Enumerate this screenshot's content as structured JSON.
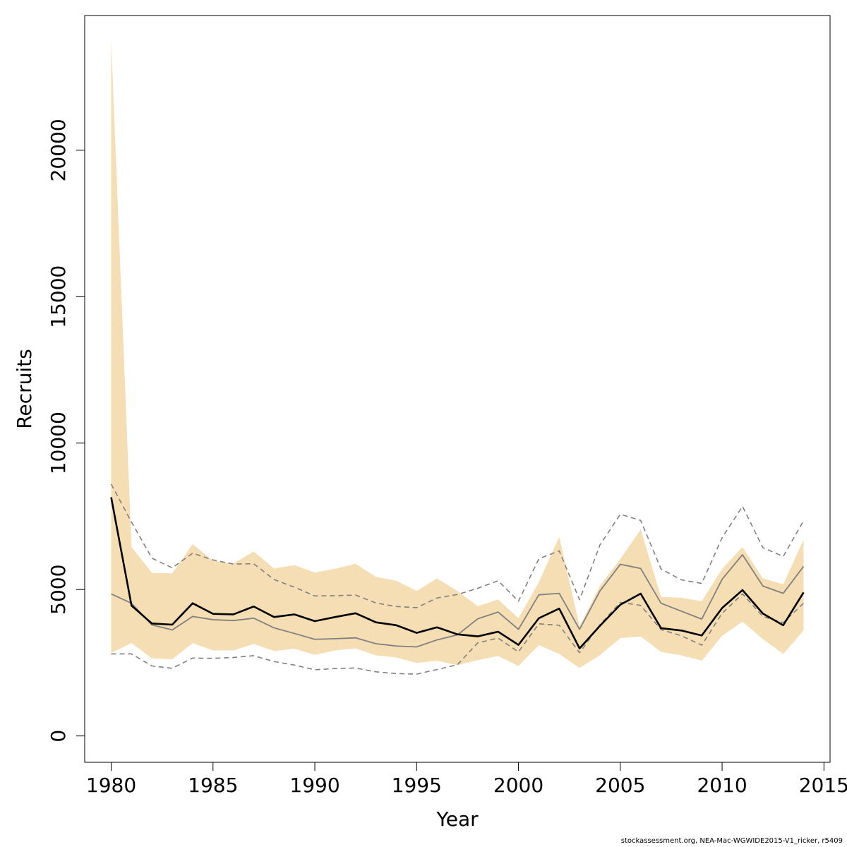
{
  "chart_data": {
    "type": "line",
    "xlabel": "Year",
    "ylabel": "Recruits",
    "xlim": [
      1978.7,
      2015.3
    ],
    "ylim": [
      -900,
      24600
    ],
    "x_ticks": [
      1980,
      1985,
      1990,
      1995,
      2000,
      2005,
      2010,
      2015
    ],
    "x_tick_labels": [
      "1980",
      "1985",
      "1990",
      "1995",
      "2000",
      "2005",
      "2010",
      "2015"
    ],
    "y_ticks": [
      0,
      5000,
      10000,
      15000,
      20000
    ],
    "y_tick_labels": [
      "0",
      "5000",
      "10000",
      "15000",
      "20000"
    ],
    "grid": false,
    "colors": {
      "band": "#f5deb3",
      "estimate": "#000000",
      "comparison": "#808080",
      "comparison_ci": "#808080",
      "axis": "#000000"
    },
    "years": [
      1980,
      1981,
      1982,
      1983,
      1984,
      1985,
      1986,
      1987,
      1988,
      1989,
      1990,
      1991,
      1992,
      1993,
      1994,
      1995,
      1996,
      1997,
      1998,
      1999,
      2000,
      2001,
      2002,
      2003,
      2004,
      2005,
      2006,
      2007,
      2008,
      2009,
      2010,
      2011,
      2012,
      2013,
      2014
    ],
    "series": [
      {
        "role": "confidence_band",
        "upper": [
          23750,
          6450,
          5570,
          5550,
          6550,
          5980,
          5890,
          6300,
          5720,
          5830,
          5580,
          5710,
          5880,
          5430,
          5300,
          4950,
          5380,
          4950,
          4430,
          4660,
          4020,
          5250,
          6800,
          3750,
          5130,
          6040,
          7050,
          4750,
          4720,
          4600,
          5700,
          6450,
          5380,
          5180,
          6700
        ],
        "lower": [
          2830,
          3170,
          2650,
          2620,
          3170,
          2920,
          2920,
          3140,
          2900,
          2980,
          2770,
          2920,
          2990,
          2750,
          2680,
          2490,
          2570,
          2420,
          2590,
          2730,
          2390,
          3100,
          2800,
          2320,
          2760,
          3340,
          3400,
          2870,
          2750,
          2570,
          3420,
          3900,
          3310,
          2800,
          3600
        ]
      },
      {
        "role": "estimate",
        "values": [
          8150,
          4450,
          3840,
          3800,
          4530,
          4170,
          4150,
          4420,
          4060,
          4150,
          3920,
          4060,
          4190,
          3880,
          3780,
          3520,
          3710,
          3470,
          3400,
          3560,
          3110,
          4020,
          4350,
          2990,
          3760,
          4480,
          4860,
          3680,
          3600,
          3430,
          4370,
          4980,
          4180,
          3780,
          4900
        ]
      },
      {
        "role": "comparison_estimate",
        "values": [
          4850,
          4530,
          3790,
          3620,
          4080,
          3970,
          3940,
          4020,
          3690,
          3500,
          3300,
          3320,
          3350,
          3150,
          3070,
          3040,
          3280,
          3450,
          4000,
          4230,
          3640,
          4820,
          4870,
          3640,
          4950,
          5860,
          5720,
          4530,
          4260,
          3990,
          5350,
          6190,
          5120,
          4870,
          5790
        ]
      },
      {
        "role": "comparison_upper",
        "values": [
          8600,
          7300,
          6070,
          5740,
          6240,
          6010,
          5870,
          5880,
          5340,
          5080,
          4780,
          4790,
          4810,
          4540,
          4420,
          4380,
          4710,
          4830,
          5040,
          5300,
          4600,
          6050,
          6320,
          4650,
          6520,
          7570,
          7360,
          5700,
          5330,
          5210,
          6770,
          7840,
          6430,
          6130,
          7350
        ]
      },
      {
        "role": "comparison_lower",
        "values": [
          2800,
          2800,
          2390,
          2310,
          2660,
          2650,
          2680,
          2740,
          2540,
          2420,
          2260,
          2300,
          2320,
          2190,
          2130,
          2110,
          2270,
          2430,
          3180,
          3340,
          2870,
          3830,
          3780,
          2840,
          3800,
          4560,
          4460,
          3630,
          3420,
          3100,
          4190,
          4850,
          4080,
          3870,
          4530
        ]
      }
    ]
  },
  "footnote": "stockassessment.org, NEA-Mac-WGWIDE2015-V1_ricker, r5409"
}
